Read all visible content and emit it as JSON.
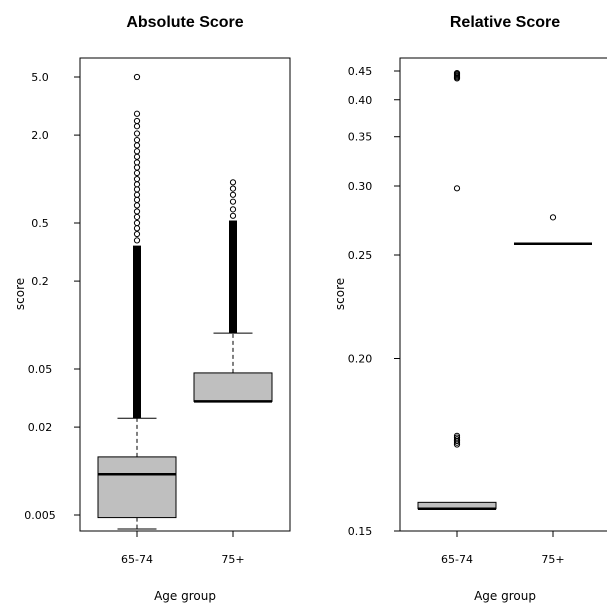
{
  "chart_data": [
    {
      "type": "boxplot",
      "title": "Absolute Score",
      "xlabel": "Age group",
      "ylabel": "score",
      "yscale": "log",
      "ylim": [
        0.003,
        6.5
      ],
      "yticks": [
        {
          "value": 5.0,
          "label": "5.0"
        },
        {
          "value": 2.0,
          "label": "2.0"
        },
        {
          "value": 0.5,
          "label": "0.5"
        },
        {
          "value": 0.2,
          "label": "0.2"
        },
        {
          "value": 0.05,
          "label": "0.05"
        },
        {
          "value": 0.02,
          "label": "0.02"
        },
        {
          "value": 0.005,
          "label": "0.005"
        }
      ],
      "categories": [
        "65-74",
        "75+"
      ],
      "boxes": [
        {
          "category": "65-74",
          "whisker_low": 0.0035,
          "q1": 0.0048,
          "median": 0.0095,
          "q3": 0.0125,
          "whisker_high": 0.023,
          "outlier_band": [
            0.023,
            0.35
          ],
          "outliers": [
            0.38,
            0.42,
            0.46,
            0.5,
            0.55,
            0.6,
            0.66,
            0.72,
            0.78,
            0.85,
            0.92,
            1.0,
            1.1,
            1.2,
            1.3,
            1.42,
            1.55,
            1.7,
            1.85,
            2.05,
            2.3,
            2.5,
            2.8,
            5.0
          ]
        },
        {
          "category": "75+",
          "whisker_low": 0.03,
          "q1": 0.03,
          "median": 0.03,
          "q3": 0.047,
          "whisker_high": 0.088,
          "outlier_band": [
            0.088,
            0.52
          ],
          "outliers": [
            0.56,
            0.62,
            0.7,
            0.78,
            0.86,
            0.95
          ]
        }
      ],
      "grid": false
    },
    {
      "type": "boxplot",
      "title": "Relative Score",
      "xlabel": "Age group",
      "ylabel": "score",
      "yscale": "reciprocal",
      "ylim": [
        0.149,
        0.455
      ],
      "yticks": [
        {
          "value": 0.45,
          "label": "0.45"
        },
        {
          "value": 0.4,
          "label": "0.40"
        },
        {
          "value": 0.35,
          "label": "0.35"
        },
        {
          "value": 0.3,
          "label": "0.30"
        },
        {
          "value": 0.25,
          "label": "0.25"
        },
        {
          "value": 0.2,
          "label": "0.20"
        },
        {
          "value": 0.15,
          "label": "0.15"
        }
      ],
      "categories": [
        "65-74",
        "75+"
      ],
      "boxes": [
        {
          "category": "65-74",
          "whisker_low": 0.155,
          "q1": 0.155,
          "median": 0.155,
          "q3": 0.1565,
          "whisker_high": 0.1565,
          "outliers": [
            0.1715,
            0.172,
            0.1725,
            0.173,
            0.1735,
            0.174,
            0.298,
            0.436,
            0.438,
            0.44,
            0.442,
            0.444,
            0.446
          ]
        },
        {
          "category": "75+",
          "whisker_low": 0.257,
          "q1": 0.257,
          "median": 0.257,
          "q3": 0.257,
          "whisker_high": 0.257,
          "outliers": [
            0.275
          ]
        }
      ],
      "grid": false
    }
  ]
}
